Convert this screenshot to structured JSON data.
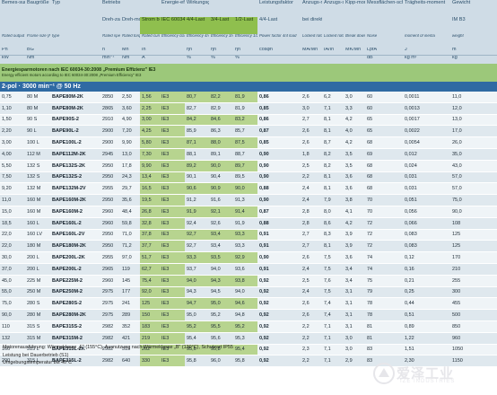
{
  "header": {
    "row1": [
      "Bemes-sungs-leistung",
      "Baugröße",
      "Typ",
      "Betriebswerte bei Bemessungsleistung",
      "",
      "",
      "Energie-effizienz",
      "Wirkungsgrad",
      "",
      "",
      "Leistungsfaktor",
      "Anzugs-moment",
      "Anzugs-strom",
      "Kipp-moment",
      "Messflächen-schalldruck-pegel",
      "Trägheits-moment",
      "Gewicht"
    ],
    "row1b": [
      "",
      "",
      "",
      "Dreh-zahl",
      "Dreh-moment",
      "Strom bei 400V",
      "IEC 60034-30:2008",
      "4/4-Last",
      "3/4-Last",
      "1/2-Last",
      "4/4-Last",
      "bei direktem Einschalten als Vielfaches des Bemessungs-wertes",
      "",
      "",
      "",
      "",
      "IM B3"
    ],
    "row2": [
      "Rated output",
      "Frame size (FS)",
      "type",
      "Rated speed",
      "Rated torque",
      "Rated current",
      "Efficiency class",
      "Efficiency 4/4 load",
      "Efficiency 3/4 load",
      "Efficiency 1/2 load",
      "Power factor 4/4 load",
      "Locked rotor torque",
      "Locked rotor current",
      "Break down torque",
      "Noise",
      "moment of inertia",
      "weight"
    ],
    "row3": [
      "Pn",
      "BG",
      "",
      "n",
      "Mn",
      "In",
      "",
      "ηn",
      "ηn",
      "ηn",
      "cosφn",
      "MA/Mn",
      "IA/In",
      "MK/Mn",
      "LpfA",
      "J",
      "m"
    ],
    "row4": [
      "kW",
      "Nm",
      "",
      "min⁻¹",
      "Nm",
      "A",
      "",
      "%",
      "%",
      "%",
      "",
      "",
      "",
      "",
      "dB",
      "kg m²",
      "kg"
    ]
  },
  "section": {
    "title": "Energiesparmotoren nach IEC 60034-30:2008 „Premium Effizienz\" IE3",
    "subtitle": "Energy efficient motors according to IEC 60034-30:2008 „Premium Efficiency\" IE3",
    "pole": "2-pol · 3000 min⁻¹ @ 50 Hz"
  },
  "rows": [
    [
      "0,75",
      "80 M",
      "BAPE80M-2K",
      "2850",
      "2,50",
      "1,56",
      "IE3",
      "80,7",
      "82,2",
      "81,9",
      "0,86",
      "2,6",
      "6,2",
      "3,0",
      "60",
      "0,0011",
      "11,0"
    ],
    [
      "1,10",
      "80 M",
      "BAPE80M-2K",
      "2865",
      "3,60",
      "2,25",
      "IE3",
      "82,7",
      "82,9",
      "81,9",
      "0,85",
      "3,0",
      "7,1",
      "3,3",
      "60",
      "0,0013",
      "12,0"
    ],
    [
      "1,50",
      "90 S",
      "BAPE90S-2",
      "2910",
      "4,90",
      "3,00",
      "IE3",
      "84,2",
      "84,6",
      "83,2",
      "0,86",
      "2,7",
      "8,1",
      "4,2",
      "65",
      "0,0017",
      "13,0"
    ],
    [
      "2,20",
      "90 L",
      "BAPE90L-2",
      "2900",
      "7,20",
      "4,25",
      "IE3",
      "85,9",
      "86,3",
      "85,7",
      "0,87",
      "2,6",
      "8,1",
      "4,0",
      "65",
      "0,0022",
      "17,0"
    ],
    [
      "3,00",
      "100 L",
      "BAPE100L-2",
      "2900",
      "9,90",
      "5,80",
      "IE3",
      "87,1",
      "88,0",
      "87,5",
      "0,85",
      "2,6",
      "8,7",
      "4,2",
      "68",
      "0,0054",
      "26,0"
    ],
    [
      "4,00",
      "112 M",
      "BAPE112M-2K",
      "2945",
      "13,0",
      "7,30",
      "IE3",
      "88,1",
      "89,1",
      "88,7",
      "0,90",
      "1,8",
      "8,2",
      "3,5",
      "69",
      "0,012",
      "35,0"
    ],
    [
      "5,50",
      "132 S",
      "BAPE132S-2K",
      "2950",
      "17,8",
      "9,90",
      "IE3",
      "89,2",
      "90,0",
      "89,7",
      "0,90",
      "2,5",
      "8,2",
      "3,5",
      "68",
      "0,024",
      "43,0"
    ],
    [
      "7,50",
      "132 S",
      "BAPE132S-2",
      "2950",
      "24,3",
      "13,4",
      "IE3",
      "90,1",
      "90,4",
      "89,5",
      "0,90",
      "2,2",
      "8,1",
      "3,6",
      "68",
      "0,031",
      "57,0"
    ],
    [
      "9,20",
      "132 M",
      "BAPE132M-2V",
      "2955",
      "29,7",
      "16,5",
      "IE3",
      "90,6",
      "90,9",
      "90,0",
      "0,88",
      "2,4",
      "8,1",
      "3,6",
      "68",
      "0,031",
      "57,0"
    ],
    [
      "11,0",
      "160 M",
      "BAPE160M-2K",
      "2950",
      "35,6",
      "19,5",
      "IE3",
      "91,2",
      "91,6",
      "91,3",
      "0,90",
      "2,4",
      "7,9",
      "3,8",
      "70",
      "0,051",
      "75,0"
    ],
    [
      "15,0",
      "160 M",
      "BAPE160M-2",
      "2960",
      "48,4",
      "26,8",
      "IE3",
      "91,9",
      "92,1",
      "91,4",
      "0,87",
      "2,8",
      "8,0",
      "4,1",
      "70",
      "0,056",
      "90,0"
    ],
    [
      "18,5",
      "160 L",
      "BAPE160L-2",
      "2960",
      "59,8",
      "32,8",
      "IE3",
      "92,4",
      "92,6",
      "91,9",
      "0,88",
      "2,8",
      "8,6",
      "4,2",
      "72",
      "0,066",
      "108"
    ],
    [
      "22,0",
      "160 LV",
      "BAPE160L-2V",
      "2950",
      "71,0",
      "37,8",
      "IE3",
      "92,7",
      "93,4",
      "93,3",
      "0,91",
      "2,7",
      "8,3",
      "3,9",
      "72",
      "0,083",
      "125"
    ],
    [
      "22,0",
      "180 M",
      "BAPE180M-2K",
      "2950",
      "71,2",
      "37,7",
      "IE3",
      "92,7",
      "93,4",
      "93,3",
      "0,91",
      "2,7",
      "8,1",
      "3,9",
      "72",
      "0,083",
      "125"
    ],
    [
      "30,0",
      "200 L",
      "BAPE200L-2K",
      "2955",
      "97,0",
      "51,7",
      "IE3",
      "93,3",
      "93,5",
      "92,9",
      "0,90",
      "2,6",
      "7,5",
      "3,6",
      "74",
      "0,12",
      "170"
    ],
    [
      "37,0",
      "200 L",
      "BAPE200L-2",
      "2965",
      "119",
      "62,7",
      "IE3",
      "93,7",
      "94,0",
      "93,6",
      "0,91",
      "2,4",
      "7,5",
      "3,4",
      "74",
      "0,16",
      "210"
    ],
    [
      "45,0",
      "225 M",
      "BAPE225M-2",
      "2960",
      "145",
      "75,4",
      "IE3",
      "94,0",
      "94,3",
      "93,8",
      "0,92",
      "2,5",
      "7,6",
      "3,4",
      "75",
      "0,21",
      "255"
    ],
    [
      "55,0",
      "250 M",
      "BAPE250M-2",
      "2975",
      "177",
      "92,0",
      "IE3",
      "94,3",
      "94,5",
      "94,0",
      "0,92",
      "2,4",
      "7,5",
      "3,1",
      "79",
      "0,25",
      "300"
    ],
    [
      "75,0",
      "280 S",
      "BAPE280S-2",
      "2975",
      "241",
      "125",
      "IE3",
      "94,7",
      "95,0",
      "94,6",
      "0,92",
      "2,6",
      "7,4",
      "3,1",
      "78",
      "0,44",
      "455"
    ],
    [
      "90,0",
      "280 M",
      "BAPE280M-2K",
      "2975",
      "289",
      "150",
      "IE3",
      "95,0",
      "95,2",
      "94,8",
      "0,92",
      "2,6",
      "7,4",
      "3,1",
      "78",
      "0,51",
      "500"
    ],
    [
      "110",
      "315 S",
      "BAPE315S-2",
      "2982",
      "352",
      "183",
      "IE3",
      "95,2",
      "95,5",
      "95,2",
      "0,92",
      "2,2",
      "7,1",
      "3,1",
      "81",
      "0,89",
      "850"
    ],
    [
      "132",
      "315 M",
      "BAPE315M-2",
      "2982",
      "421",
      "219",
      "IE3",
      "95,4",
      "95,6",
      "95,3",
      "0,92",
      "2,2",
      "7,1",
      "3,0",
      "81",
      "1,22",
      "960"
    ],
    [
      "160",
      "315 L",
      "BAPE315L-2K",
      "2982",
      "515",
      "262",
      "IE3",
      "95,6",
      "95,8",
      "95,4",
      "0,92",
      "2,3",
      "7,1",
      "3,0",
      "83",
      "1,51",
      "1050"
    ],
    [
      "200",
      "315 L",
      "BAPE315L-2",
      "2982",
      "640",
      "330",
      "IE3",
      "95,8",
      "96,0",
      "95,8",
      "0,92",
      "2,2",
      "7,1",
      "2,9",
      "83",
      "2,30",
      "1150"
    ]
  ],
  "footer": {
    "line1": "Motorenausführung: Wärmeklasse „F\" (155°C), Ausnutzung nach Wärmeklasse „B\" (130°C), Schutzart IP55",
    "line2": "Leistung bei Dauerbetrieb (S1)",
    "line3": "Umgebungstemperatur bis 40°C"
  },
  "watermark": {
    "cn": "爱泽工业",
    "en": "IZE INDUSTRIES"
  },
  "colors": {
    "header_bg": "#cfdce6",
    "green": "#8fbf4e",
    "pole_bar": "#2f6aa3",
    "row_alt": "#dfe8ee",
    "highlight": "#b7d48f"
  }
}
